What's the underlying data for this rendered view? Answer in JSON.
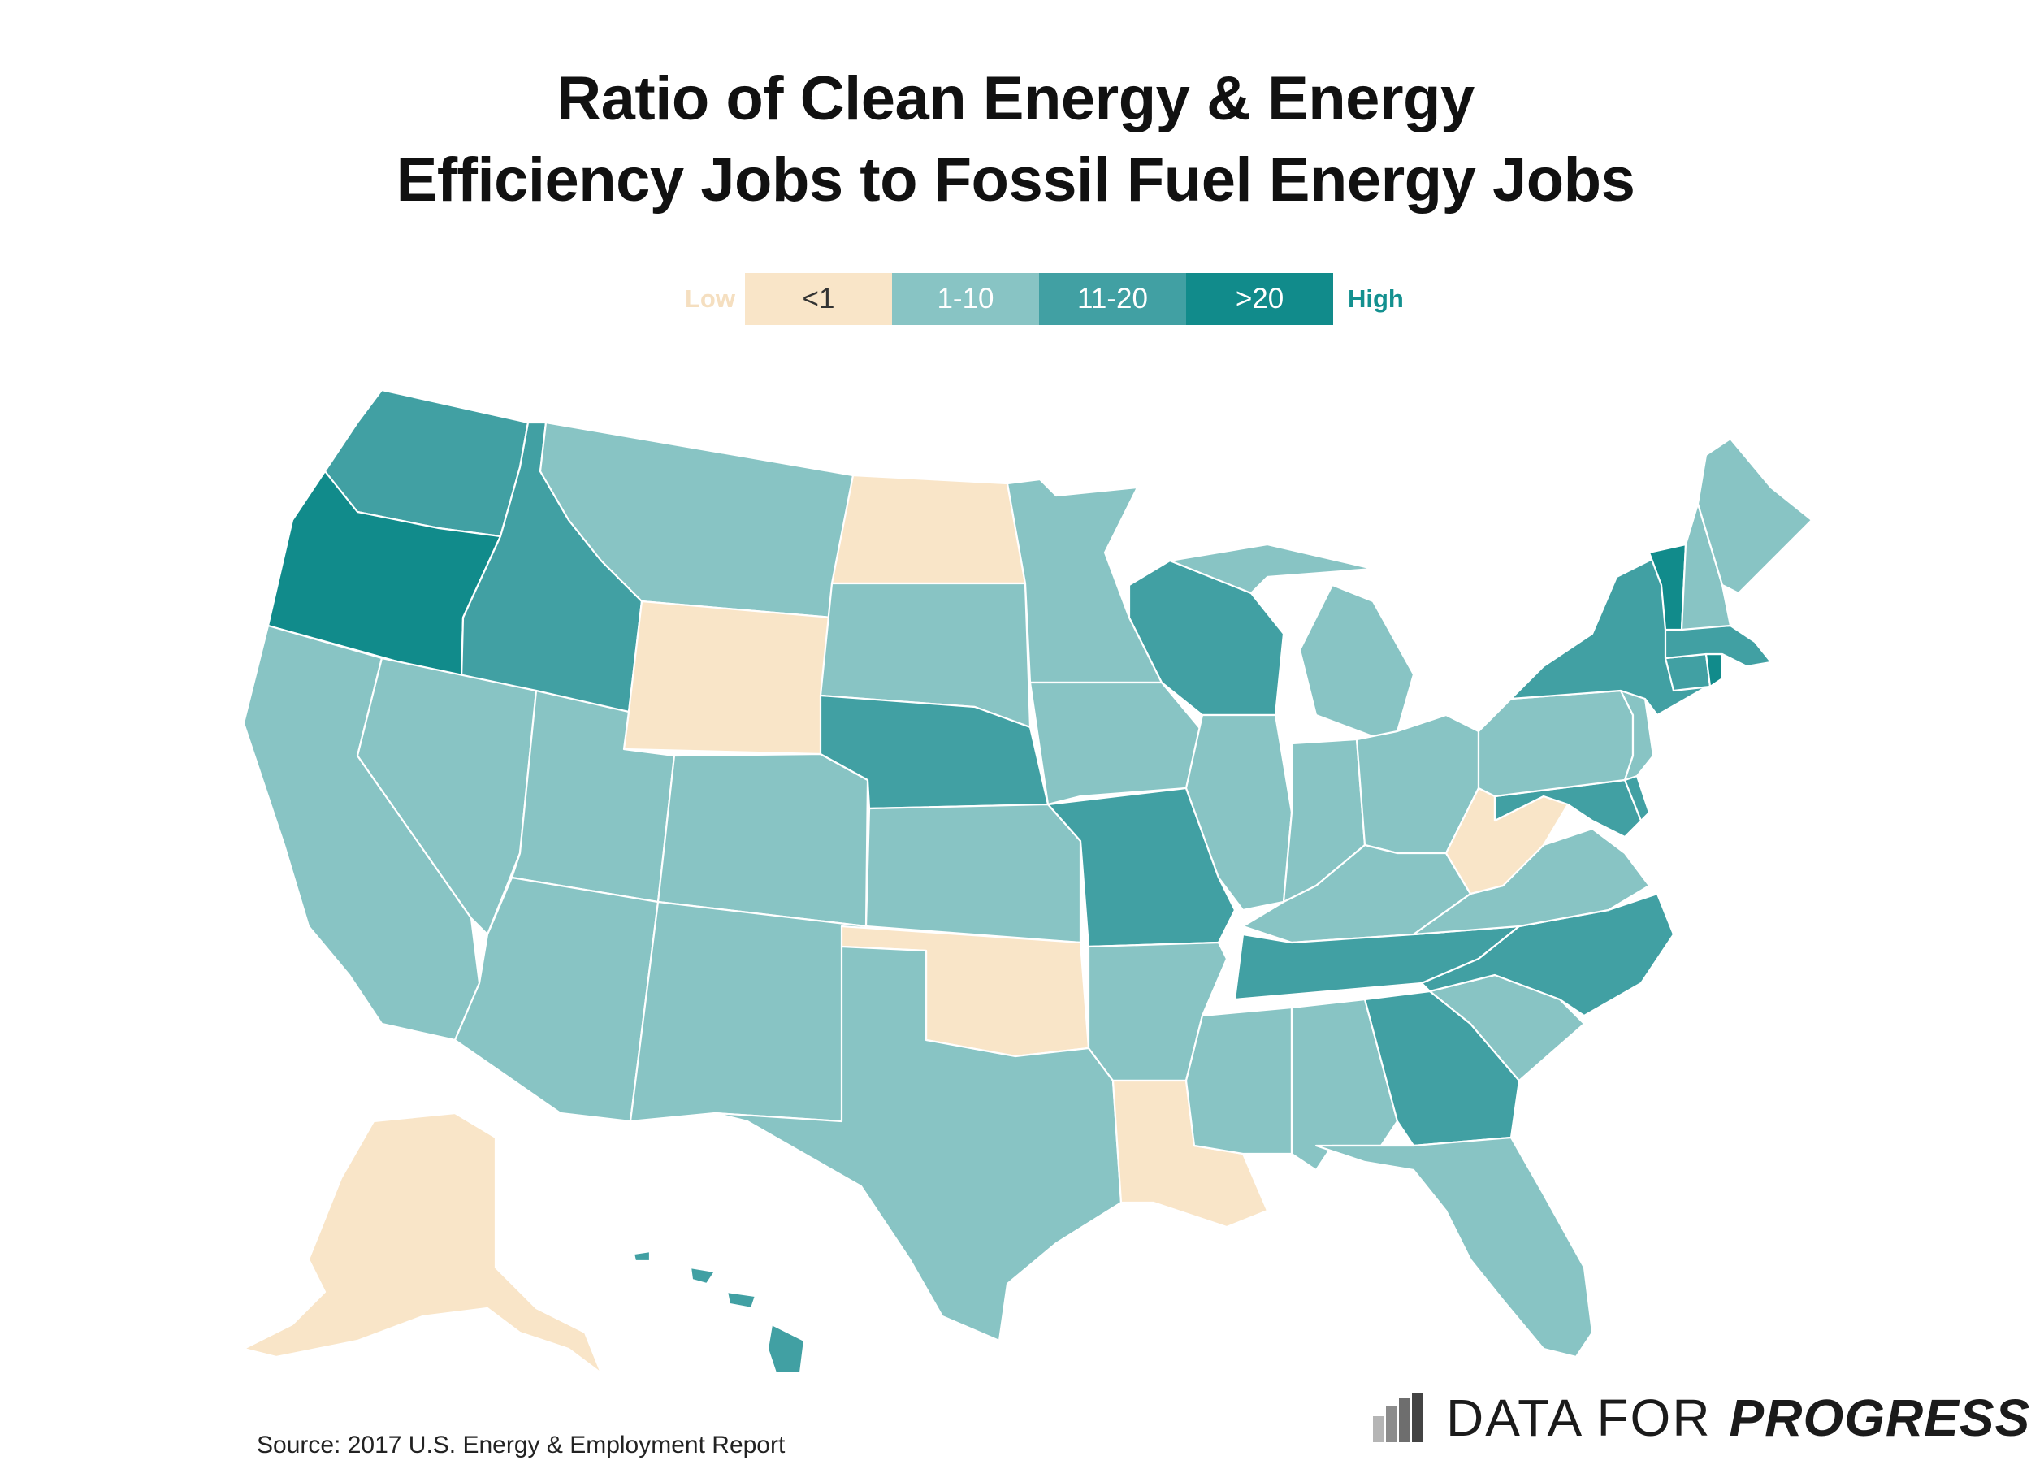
{
  "title": {
    "line1": "Ratio of Clean Energy & Energy",
    "line2": "Efficiency Jobs to Fossil Fuel Energy Jobs"
  },
  "legend": {
    "low_label": "Low",
    "high_label": "High",
    "bins": [
      {
        "label": "<1",
        "color": "#f9e5c8",
        "text_color": "#333333"
      },
      {
        "label": "1-10",
        "color": "#88c4c4",
        "text_color": "#ffffff"
      },
      {
        "label": "11-20",
        "color": "#41a0a3",
        "text_color": "#ffffff"
      },
      {
        "label": ">20",
        "color": "#118b8b",
        "text_color": "#ffffff"
      }
    ]
  },
  "colors": {
    "low_text": "#f5dfc0",
    "high_text": "#13908f",
    "background": "#ffffff",
    "border": "#ffffff"
  },
  "states": {
    "WA": "11-20",
    "OR": ">20",
    "CA": "1-10",
    "ID": "11-20",
    "NV": "1-10",
    "MT": "1-10",
    "WY": "<1",
    "UT": "1-10",
    "AZ": "1-10",
    "CO": "1-10",
    "NM": "1-10",
    "ND": "<1",
    "SD": "1-10",
    "NE": "11-20",
    "KS": "1-10",
    "OK": "<1",
    "TX": "1-10",
    "MN": "1-10",
    "IA": "1-10",
    "MO": "11-20",
    "AR": "1-10",
    "LA": "<1",
    "WI": "11-20",
    "IL": "1-10",
    "MI": "1-10",
    "IN": "1-10",
    "OH": "1-10",
    "KY": "1-10",
    "TN": "11-20",
    "MS": "1-10",
    "AL": "1-10",
    "GA": "11-20",
    "FL": "1-10",
    "SC": "1-10",
    "NC": "11-20",
    "VA": "1-10",
    "WV": "<1",
    "MD": "11-20",
    "DE": "11-20",
    "PA": "1-10",
    "NJ": "1-10",
    "NY": "11-20",
    "CT": "11-20",
    "RI": ">20",
    "MA": "11-20",
    "VT": ">20",
    "NH": "1-10",
    "ME": "1-10",
    "AK": "<1",
    "HI": "11-20"
  },
  "source": "Source: 2017 U.S. Energy & Employment Report",
  "brand": {
    "part1": "DATA FOR",
    "part2": "PROGRESS",
    "bar_colors": [
      "#b5b5b5",
      "#8c8c8c",
      "#6e6e6e",
      "#444444"
    ]
  }
}
